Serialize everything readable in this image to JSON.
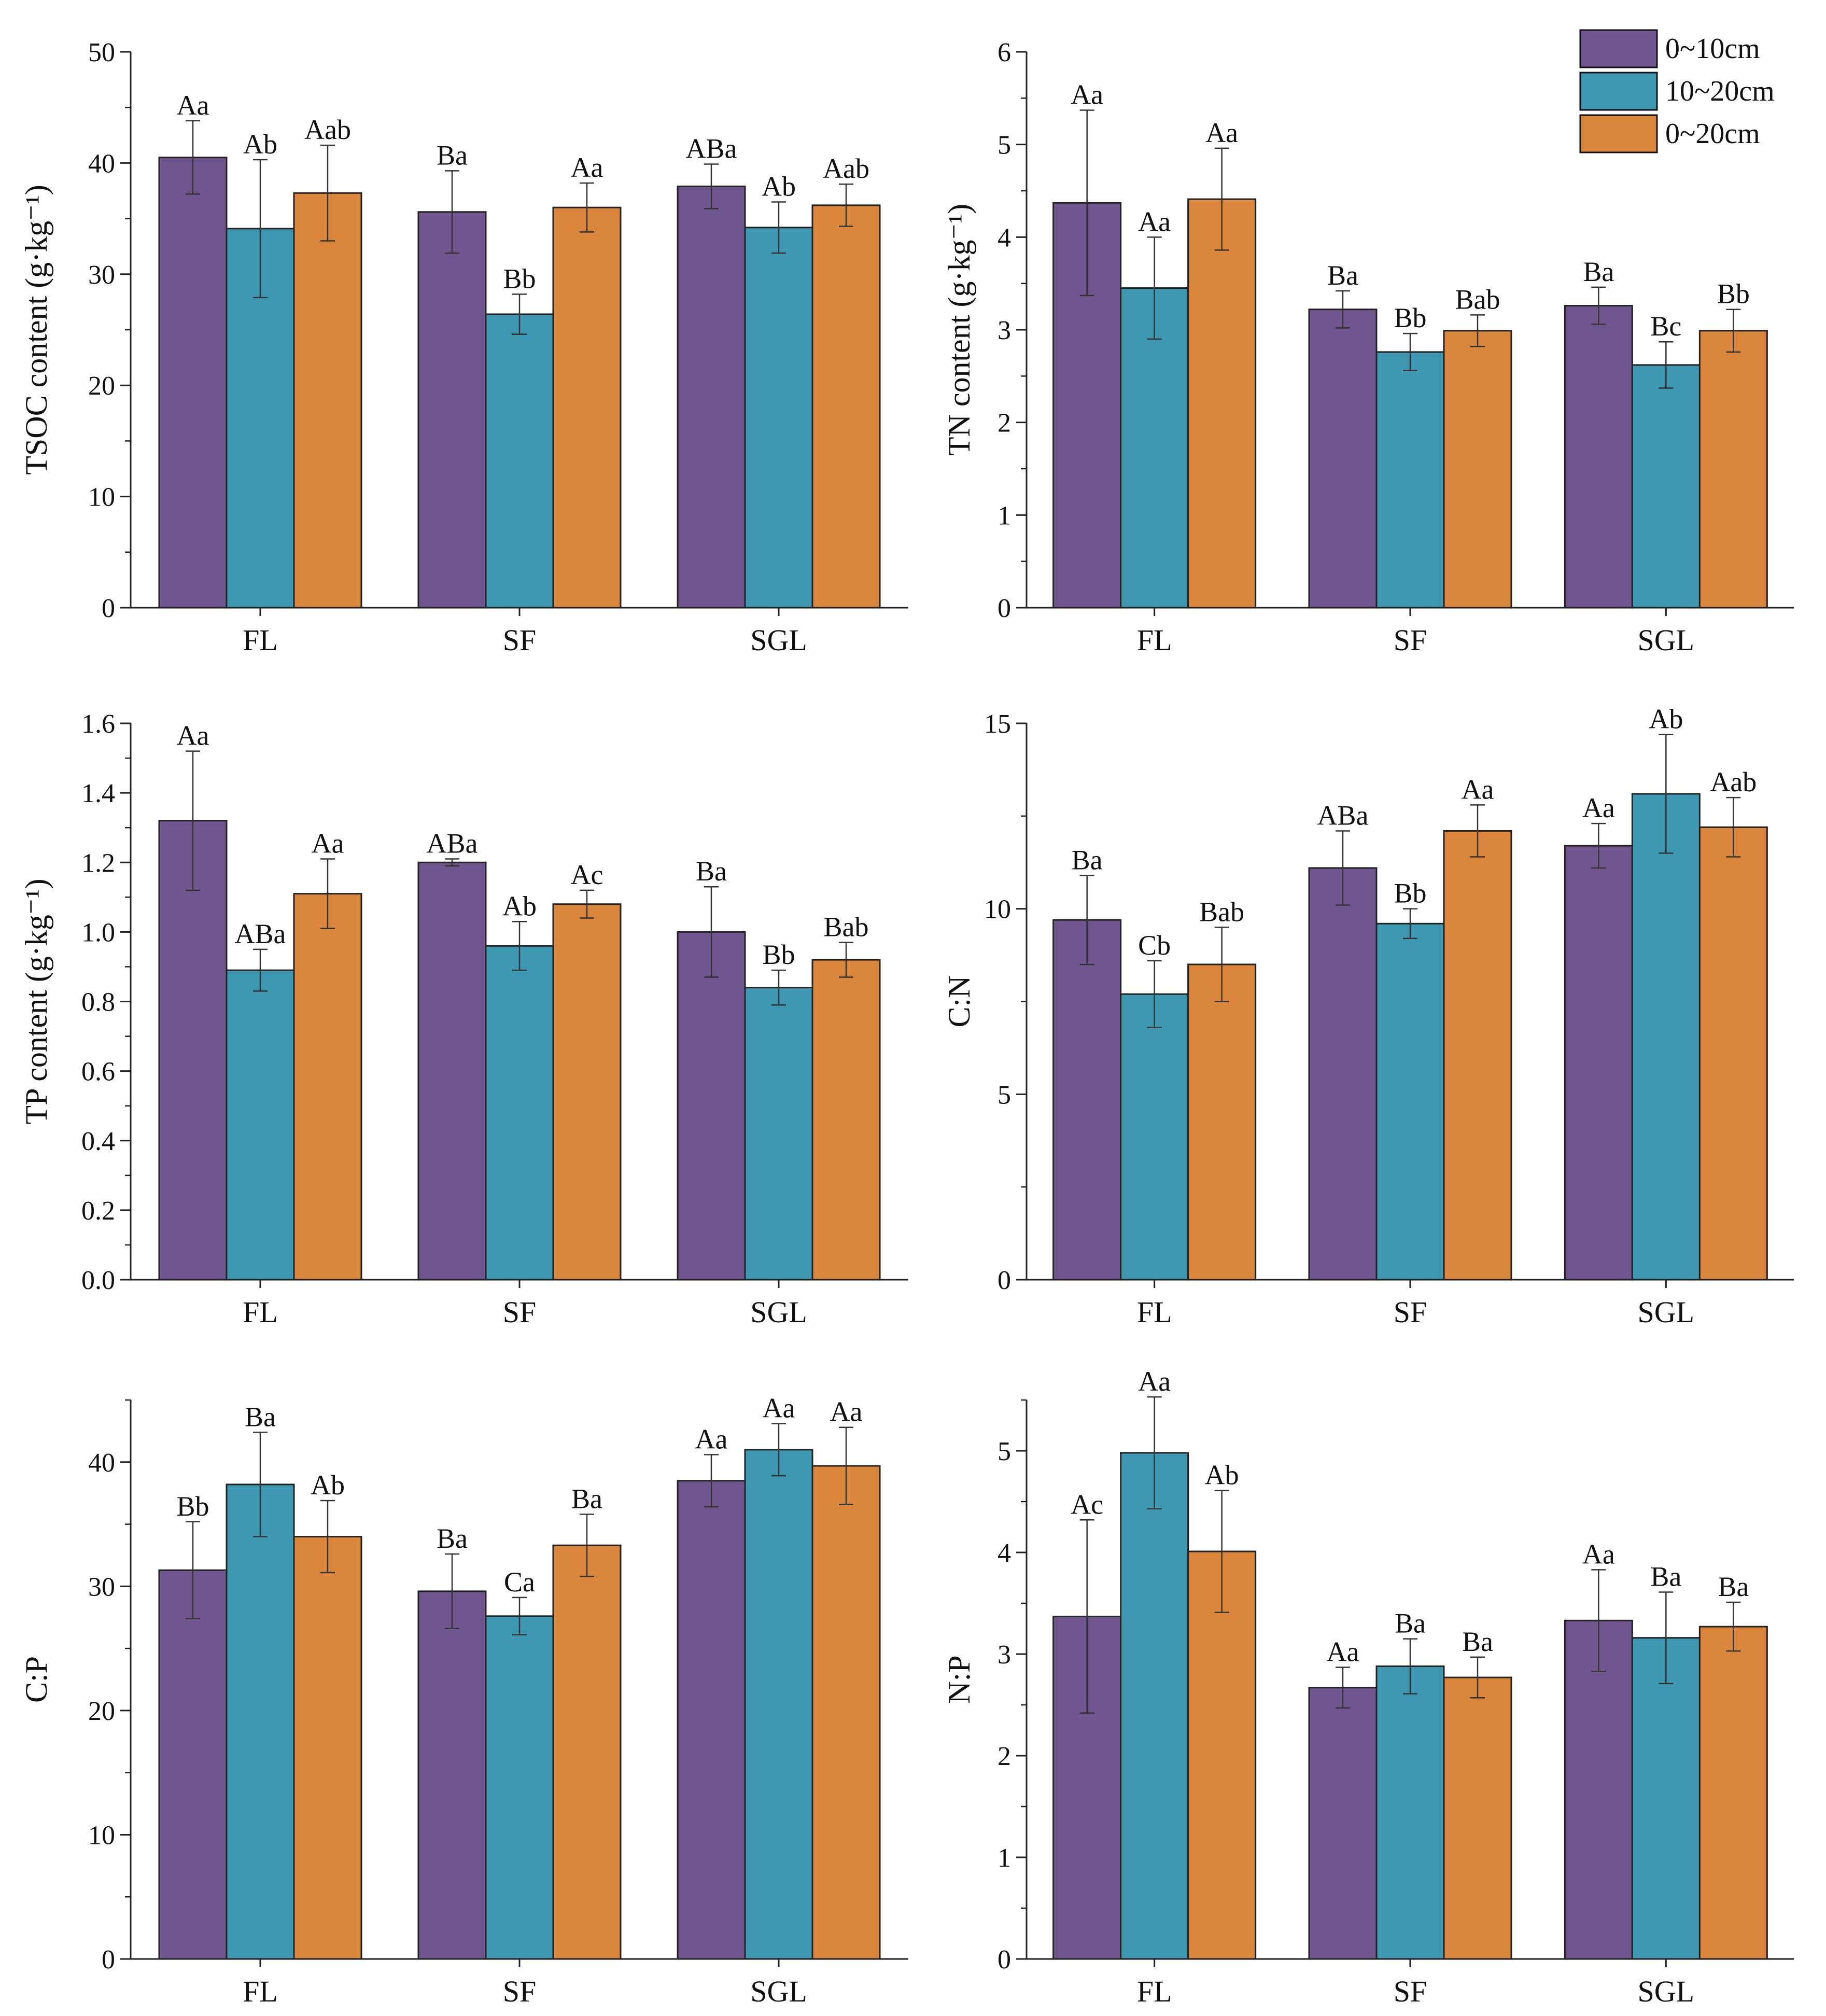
{
  "legend": {
    "entries": [
      {
        "label": "0~10cm",
        "color": "#70568f"
      },
      {
        "label": "10~20cm",
        "color": "#3f98b1"
      },
      {
        "label": "0~20cm",
        "color": "#db863d"
      }
    ]
  },
  "chart_data": [
    {
      "type": "bar",
      "ylabel": "TSOC content (g·kg⁻¹)",
      "ylim": [
        0,
        50
      ],
      "yticks": [
        0,
        10,
        20,
        30,
        40,
        50
      ],
      "tick_labels": [
        "0",
        "10",
        "20",
        "30",
        "40",
        "50"
      ],
      "categories": [
        "FL",
        "SF",
        "SGL"
      ],
      "series": [
        {
          "name": "0~10cm",
          "values": [
            40.5,
            35.6,
            37.9
          ],
          "errors": [
            3.3,
            3.7,
            2.0
          ],
          "labels": [
            "Aa",
            "Ba",
            "ABa"
          ]
        },
        {
          "name": "10~20cm",
          "values": [
            34.1,
            26.4,
            34.2
          ],
          "errors": [
            6.2,
            1.8,
            2.3
          ],
          "labels": [
            "Ab",
            "Bb",
            "Ab"
          ]
        },
        {
          "name": "0~20cm",
          "values": [
            37.3,
            36.0,
            36.2
          ],
          "errors": [
            4.3,
            2.2,
            1.9
          ],
          "labels": [
            "Aab",
            "Aa",
            "Aab"
          ]
        }
      ]
    },
    {
      "type": "bar",
      "ylabel": "TN content (g·kg⁻¹)",
      "ylim": [
        0,
        6
      ],
      "yticks": [
        0,
        1,
        2,
        3,
        4,
        5,
        6
      ],
      "tick_labels": [
        "0",
        "1",
        "2",
        "3",
        "4",
        "5",
        "6"
      ],
      "categories": [
        "FL",
        "SF",
        "SGL"
      ],
      "series": [
        {
          "name": "0~10cm",
          "values": [
            4.37,
            3.22,
            3.26
          ],
          "errors": [
            1.0,
            0.2,
            0.2
          ],
          "labels": [
            "Aa",
            "Ba",
            "Ba"
          ]
        },
        {
          "name": "10~20cm",
          "values": [
            3.45,
            2.76,
            2.62
          ],
          "errors": [
            0.55,
            0.2,
            0.25
          ],
          "labels": [
            "Aa",
            "Bb",
            "Bc"
          ]
        },
        {
          "name": "0~20cm",
          "values": [
            4.41,
            2.99,
            2.99
          ],
          "errors": [
            0.55,
            0.17,
            0.23
          ],
          "labels": [
            "Aa",
            "Bab",
            "Bb"
          ]
        }
      ]
    },
    {
      "type": "bar",
      "ylabel": "TP content (g·kg⁻¹)",
      "ylim": [
        0,
        1.6
      ],
      "yticks": [
        0,
        0.2,
        0.4,
        0.6,
        0.8,
        1.0,
        1.2,
        1.4,
        1.6
      ],
      "tick_labels": [
        "0.0",
        "0.2",
        "0.4",
        "0.6",
        "0.8",
        "1.0",
        "1.2",
        "1.4",
        "1.6"
      ],
      "categories": [
        "FL",
        "SF",
        "SGL"
      ],
      "series": [
        {
          "name": "0~10cm",
          "values": [
            1.32,
            1.2,
            1.0
          ],
          "errors": [
            0.2,
            0.01,
            0.13
          ],
          "labels": [
            "Aa",
            "ABa",
            "Ba"
          ]
        },
        {
          "name": "10~20cm",
          "values": [
            0.89,
            0.96,
            0.84
          ],
          "errors": [
            0.06,
            0.07,
            0.05
          ],
          "labels": [
            "ABa",
            "Ab",
            "Bb"
          ]
        },
        {
          "name": "0~20cm",
          "values": [
            1.11,
            1.08,
            0.92
          ],
          "errors": [
            0.1,
            0.04,
            0.05
          ],
          "labels": [
            "Aa",
            "Ac",
            "Bab"
          ]
        }
      ]
    },
    {
      "type": "bar",
      "ylabel": "C:N",
      "ylim": [
        0,
        15
      ],
      "yticks": [
        0,
        5,
        10,
        15
      ],
      "tick_labels": [
        "0",
        "5",
        "10",
        "15"
      ],
      "categories": [
        "FL",
        "SF",
        "SGL"
      ],
      "series": [
        {
          "name": "0~10cm",
          "values": [
            9.7,
            11.1,
            11.7
          ],
          "errors": [
            1.2,
            1.0,
            0.6
          ],
          "labels": [
            "Ba",
            "ABa",
            "Aa"
          ]
        },
        {
          "name": "10~20cm",
          "values": [
            7.7,
            9.6,
            13.1
          ],
          "errors": [
            0.9,
            0.4,
            1.6
          ],
          "labels": [
            "Cb",
            "Bb",
            "Ab"
          ]
        },
        {
          "name": "0~20cm",
          "values": [
            8.5,
            12.1,
            12.2
          ],
          "errors": [
            1.0,
            0.7,
            0.8
          ],
          "labels": [
            "Bab",
            "Aa",
            "Aab"
          ]
        }
      ]
    },
    {
      "type": "bar",
      "ylabel": "C:P",
      "ylim": [
        0,
        45
      ],
      "yticks": [
        0,
        10,
        20,
        30,
        40
      ],
      "tick_labels": [
        "0",
        "10",
        "20",
        "30",
        "40"
      ],
      "categories": [
        "FL",
        "SF",
        "SGL"
      ],
      "series": [
        {
          "name": "0~10cm",
          "values": [
            31.3,
            29.6,
            38.5
          ],
          "errors": [
            3.9,
            3.0,
            2.1
          ],
          "labels": [
            "Bb",
            "Ba",
            "Aa"
          ]
        },
        {
          "name": "10~20cm",
          "values": [
            38.2,
            27.6,
            41.0
          ],
          "errors": [
            4.2,
            1.5,
            2.1
          ],
          "labels": [
            "Ba",
            "Ca",
            "Aa"
          ]
        },
        {
          "name": "0~20cm",
          "values": [
            34.0,
            33.3,
            39.7
          ],
          "errors": [
            2.9,
            2.5,
            3.1
          ],
          "labels": [
            "Ab",
            "Ba",
            "Aa"
          ]
        }
      ]
    },
    {
      "type": "bar",
      "ylabel": "N:P",
      "ylim": [
        0,
        5.5
      ],
      "yticks": [
        0,
        1,
        2,
        3,
        4,
        5
      ],
      "tick_labels": [
        "0",
        "1",
        "2",
        "3",
        "4",
        "5"
      ],
      "categories": [
        "FL",
        "SF",
        "SGL"
      ],
      "series": [
        {
          "name": "0~10cm",
          "values": [
            3.37,
            2.67,
            3.33
          ],
          "errors": [
            0.95,
            0.2,
            0.5
          ],
          "labels": [
            "Ac",
            "Aa",
            "Aa"
          ]
        },
        {
          "name": "10~20cm",
          "values": [
            4.98,
            2.88,
            3.16
          ],
          "errors": [
            0.55,
            0.27,
            0.45
          ],
          "labels": [
            "Aa",
            "Ba",
            "Ba"
          ]
        },
        {
          "name": "0~20cm",
          "values": [
            4.01,
            2.77,
            3.27
          ],
          "errors": [
            0.6,
            0.2,
            0.24
          ],
          "labels": [
            "Ab",
            "Ba",
            "Ba"
          ]
        }
      ]
    }
  ]
}
